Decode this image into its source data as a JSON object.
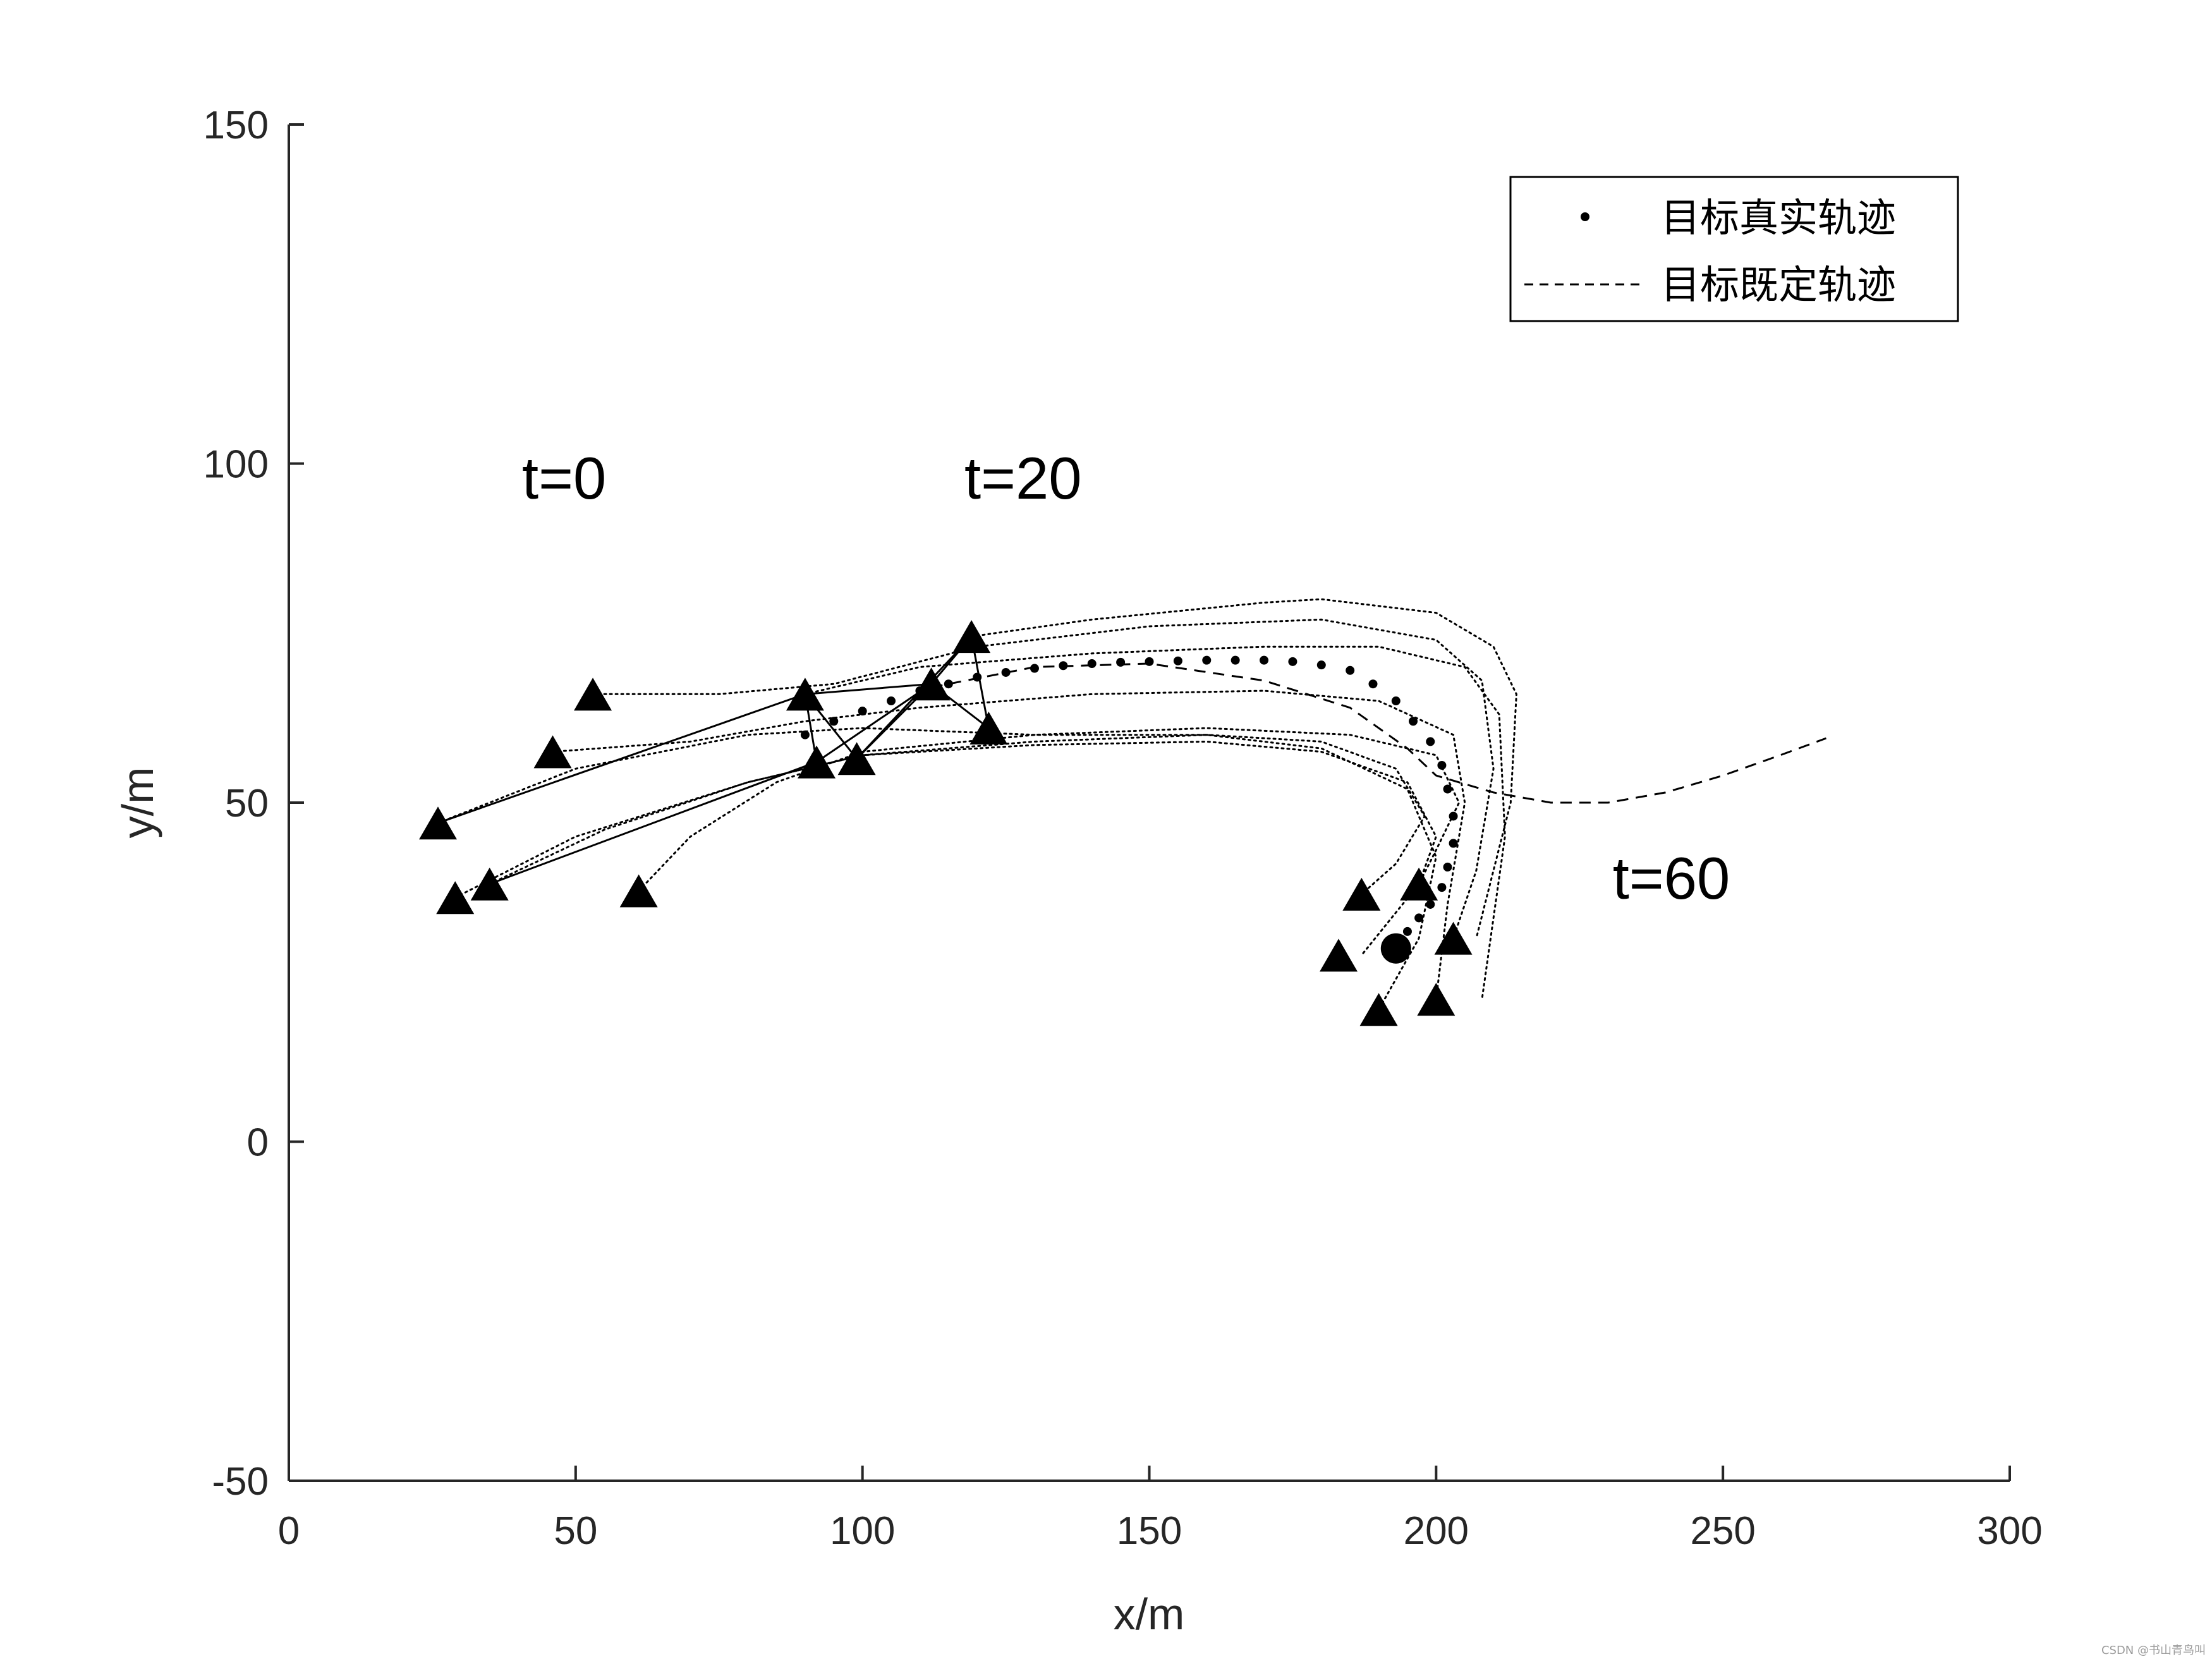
{
  "chart_data": {
    "type": "scatter",
    "title": "",
    "xlabel": "x/m",
    "ylabel": "y/m",
    "xlim": [
      0,
      300
    ],
    "ylim": [
      -50,
      150
    ],
    "xticks": [
      0,
      50,
      100,
      150,
      200,
      250,
      300
    ],
    "yticks": [
      -50,
      0,
      50,
      100,
      150
    ],
    "xtick_labels": [
      "0",
      "50",
      "100",
      "150",
      "200",
      "250",
      "300"
    ],
    "ytick_labels": [
      "-50",
      "0",
      "50",
      "100",
      "150"
    ],
    "grid": false,
    "legend": {
      "placement": "top-right",
      "entries": [
        {
          "label": "目标真实轨迹",
          "style": "dots"
        },
        {
          "label": "目标既定轨迹",
          "style": "dashed"
        }
      ]
    },
    "annotations": [
      {
        "text": "t=0",
        "x": 48,
        "y": 98
      },
      {
        "text": "t=20",
        "x": 128,
        "y": 98
      },
      {
        "text": "t=60",
        "x": 241,
        "y": 39
      }
    ],
    "target_true_trajectory": {
      "x": [
        90,
        95,
        100,
        105,
        110,
        115,
        120,
        125,
        130,
        135,
        140,
        145,
        150,
        155,
        160,
        165,
        170,
        175,
        180,
        185,
        189,
        193,
        196,
        199,
        201,
        202,
        203,
        203,
        202,
        201,
        199,
        197,
        195,
        193
      ],
      "y": [
        60,
        62,
        63.5,
        65,
        66.5,
        67.5,
        68.5,
        69.2,
        69.8,
        70.2,
        70.5,
        70.7,
        70.8,
        70.9,
        71,
        71,
        71,
        70.8,
        70.3,
        69.5,
        67.5,
        65,
        62,
        59,
        55.5,
        52,
        48,
        44,
        40.5,
        37.5,
        35,
        33,
        31,
        29
      ]
    },
    "target_planned_trajectory": {
      "x": [
        112,
        130,
        150,
        170,
        185,
        195,
        200,
        210,
        220,
        230,
        240,
        250,
        260,
        268
      ],
      "y": [
        67,
        70,
        70.5,
        68,
        64,
        58,
        54,
        51.5,
        50,
        50,
        51.5,
        54,
        57,
        59.5
      ]
    },
    "target_final_position": {
      "x": 193,
      "y": 28.5
    },
    "agents": {
      "t0": {
        "x": [
          26,
          29,
          35,
          46,
          53,
          61
        ],
        "y": [
          47,
          36,
          38,
          57.5,
          66,
          37
        ]
      },
      "t20": {
        "x": [
          90,
          92,
          99,
          112,
          119,
          122
        ],
        "y": [
          66,
          56,
          56.5,
          67.5,
          74.5,
          61
        ]
      },
      "t60": {
        "x": [
          183,
          187,
          190,
          197,
          200,
          203
        ],
        "y": [
          27.5,
          36.5,
          19.5,
          38,
          21,
          30
        ]
      }
    },
    "agent_paths": [
      {
        "x": [
          26,
          50,
          80,
          100,
          130,
          160,
          180,
          195,
          200,
          197,
          190
        ],
        "y": [
          47,
          55,
          60,
          61,
          60,
          60,
          58,
          52,
          42,
          30,
          19.5
        ]
      },
      {
        "x": [
          29,
          50,
          80,
          100,
          130,
          160,
          180,
          195,
          200,
          197,
          187
        ],
        "y": [
          36,
          45,
          53,
          57,
          58.5,
          59,
          57.5,
          53,
          45,
          38,
          27.5
        ]
      },
      {
        "x": [
          35,
          55,
          80,
          100,
          130,
          160,
          180,
          193,
          198,
          193,
          187
        ],
        "y": [
          38,
          46,
          53,
          57,
          59,
          60,
          59,
          55,
          48,
          41,
          36.5
        ]
      },
      {
        "x": [
          46,
          70,
          90,
          110,
          140,
          170,
          190,
          203,
          205,
          202,
          200
        ],
        "y": [
          57.5,
          59,
          62,
          64,
          66,
          66.5,
          65,
          60,
          50,
          35,
          21
        ]
      },
      {
        "x": [
          53,
          75,
          95,
          120,
          150,
          180,
          200,
          208,
          210,
          207,
          203
        ],
        "y": [
          66,
          66,
          67.5,
          73,
          76,
          77,
          74,
          68,
          55,
          40,
          30
        ]
      },
      {
        "x": [
          61,
          70,
          85,
          100,
          130,
          160,
          185,
          200,
          204,
          200,
          197
        ],
        "y": [
          37,
          45,
          53,
          57.5,
          60,
          61,
          60,
          57,
          50,
          43,
          38
        ]
      },
      {
        "x": [
          90,
          110,
          140,
          170,
          190,
          205,
          211,
          212,
          208
        ],
        "y": [
          66,
          70,
          72,
          73,
          73,
          70,
          63,
          45,
          21
        ]
      },
      {
        "x": [
          119,
          140,
          170,
          180,
          200,
          210,
          214,
          213,
          207
        ],
        "y": [
          74.5,
          77,
          79.5,
          80,
          78,
          73,
          66,
          50,
          30
        ]
      }
    ],
    "formation_links": [
      {
        "from": [
          26,
          47
        ],
        "to": [
          90,
          66
        ]
      },
      {
        "from": [
          35,
          38
        ],
        "to": [
          92,
          56
        ]
      },
      {
        "from": [
          90,
          66
        ],
        "to": [
          92,
          56
        ]
      },
      {
        "from": [
          90,
          66
        ],
        "to": [
          99,
          56.5
        ]
      },
      {
        "from": [
          92,
          56
        ],
        "to": [
          112,
          67.5
        ]
      },
      {
        "from": [
          99,
          56.5
        ],
        "to": [
          112,
          67.5
        ]
      },
      {
        "from": [
          99,
          56.5
        ],
        "to": [
          119,
          74.5
        ]
      },
      {
        "from": [
          112,
          67.5
        ],
        "to": [
          119,
          74.5
        ]
      },
      {
        "from": [
          112,
          67.5
        ],
        "to": [
          122,
          61
        ]
      },
      {
        "from": [
          119,
          74.5
        ],
        "to": [
          122,
          61
        ]
      },
      {
        "from": [
          90,
          66
        ],
        "to": [
          112,
          67.5
        ]
      }
    ]
  },
  "watermark": "CSDN @书山青鸟叫"
}
